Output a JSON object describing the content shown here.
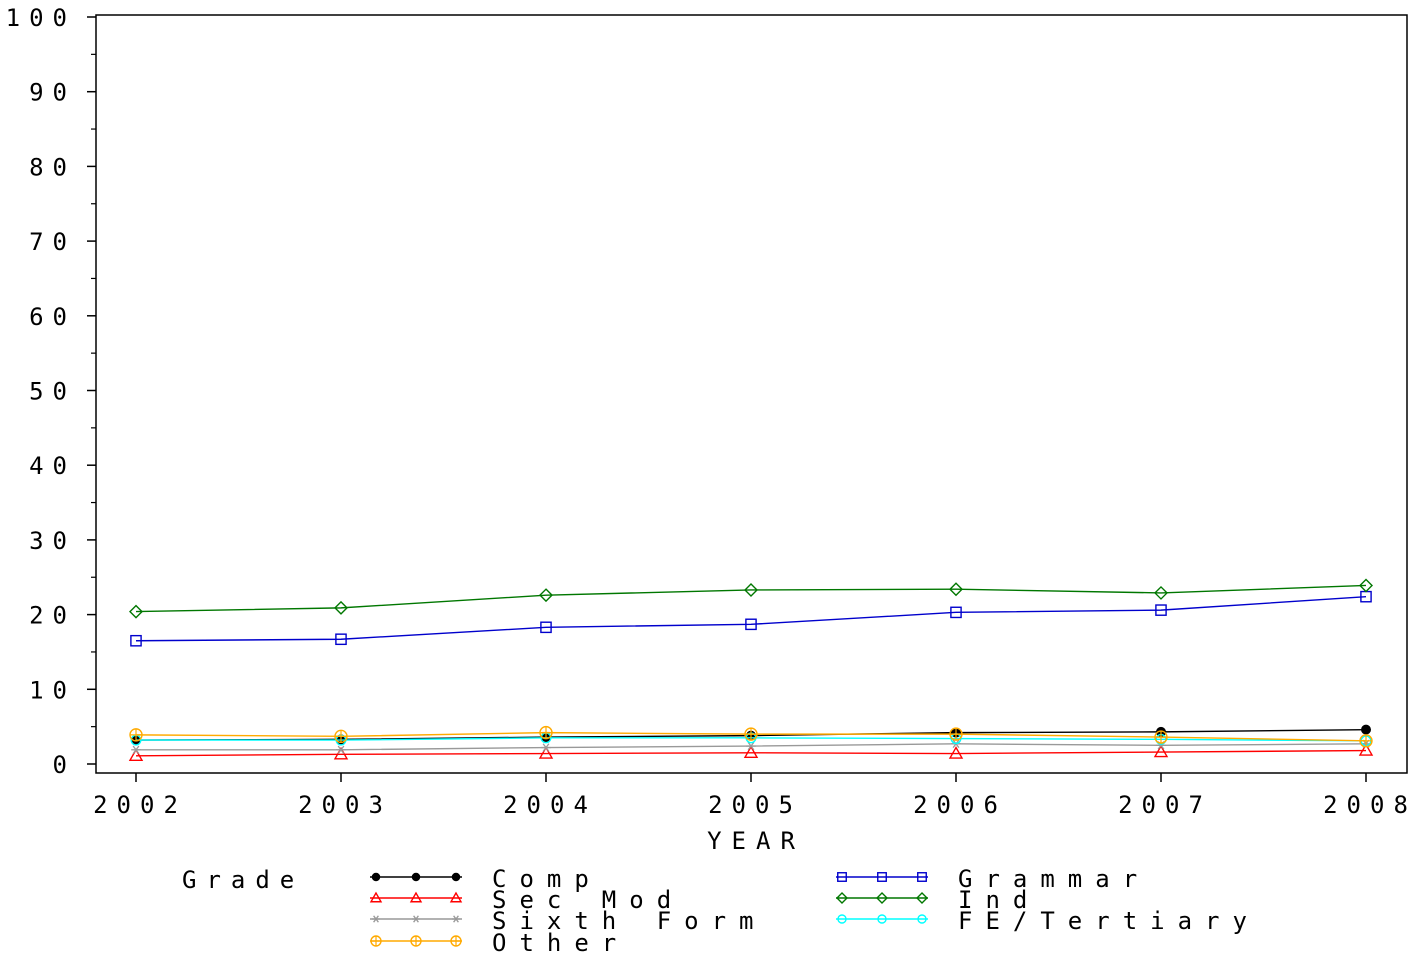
{
  "chart_data": {
    "type": "line",
    "title": "",
    "xlabel": "YEAR",
    "ylabel": "",
    "x": [
      2002,
      2003,
      2004,
      2005,
      2006,
      2007,
      2008
    ],
    "x_tick_labels": [
      "2002",
      "2003",
      "2004",
      "2005",
      "2006",
      "2007",
      "2008"
    ],
    "ylim": [
      0,
      100
    ],
    "y_ticks": [
      0,
      10,
      20,
      30,
      40,
      50,
      60,
      70,
      80,
      90,
      100
    ],
    "y_tick_labels": [
      "0",
      "10",
      "20",
      "30",
      "40",
      "50",
      "60",
      "70",
      "80",
      "90",
      "100"
    ],
    "grid": false,
    "legend": {
      "title": "Grade",
      "placement": "bottom"
    },
    "series": [
      {
        "name": "Comp",
        "color": "#000000",
        "marker": "filled-circle",
        "values": [
          3.2,
          3.3,
          3.6,
          3.8,
          4.2,
          4.3,
          4.6
        ]
      },
      {
        "name": "Grammar",
        "color": "#0000CC",
        "marker": "square",
        "values": [
          16.5,
          16.7,
          18.3,
          18.7,
          20.3,
          20.6,
          22.4
        ]
      },
      {
        "name": "Sec Mod",
        "color": "#FF0000",
        "marker": "triangle",
        "values": [
          1.1,
          1.3,
          1.4,
          1.5,
          1.4,
          1.6,
          1.8
        ]
      },
      {
        "name": "Ind",
        "color": "#007700",
        "marker": "diamond",
        "values": [
          20.4,
          20.9,
          22.6,
          23.3,
          23.4,
          22.9,
          23.9
        ]
      },
      {
        "name": "Sixth Form",
        "color": "#999999",
        "marker": "star",
        "values": [
          1.9,
          1.9,
          2.2,
          2.4,
          2.7,
          2.5,
          2.7
        ]
      },
      {
        "name": "FE/Tertiary",
        "color": "#00FFFF",
        "marker": "circle",
        "values": [
          3.2,
          3.2,
          3.5,
          3.5,
          3.4,
          3.3,
          3.1
        ]
      },
      {
        "name": "Other",
        "color": "#FFAA00",
        "marker": "crossed-circle",
        "values": [
          3.9,
          3.7,
          4.2,
          4.0,
          4.0,
          3.6,
          3.1
        ]
      }
    ]
  }
}
